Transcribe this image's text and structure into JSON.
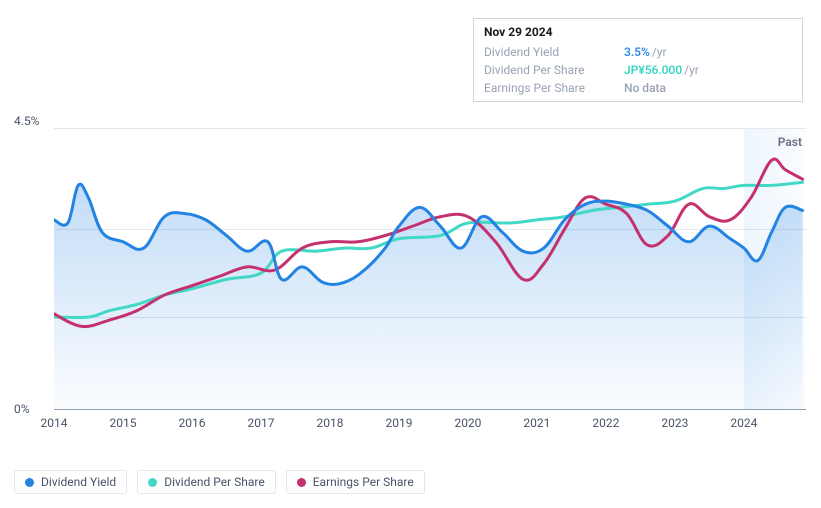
{
  "tooltip": {
    "date": "Nov 29 2024",
    "rows": [
      {
        "label": "Dividend Yield",
        "value": "3.5%",
        "suffix": "/yr",
        "cls": "v-blue"
      },
      {
        "label": "Dividend Per Share",
        "value": "JP¥56.000",
        "suffix": "/yr",
        "cls": "v-teal"
      },
      {
        "label": "Earnings Per Share",
        "value": "No data",
        "suffix": "",
        "cls": "v-gray"
      }
    ]
  },
  "chart": {
    "type": "line",
    "ylim": [
      0,
      4.5
    ],
    "y_ticks": [
      {
        "v": 4.5,
        "label": "4.5%"
      },
      {
        "v": 0,
        "label": "0%"
      }
    ],
    "gridlines_at": [
      2.9,
      1.5
    ],
    "x_start": 2014,
    "x_end": 2024.9,
    "x_ticks": [
      2014,
      2015,
      2016,
      2017,
      2018,
      2019,
      2020,
      2021,
      2022,
      2023,
      2024
    ],
    "past_band": {
      "from": 2024,
      "to": 2024.9,
      "label": "Past"
    },
    "colors": {
      "dividend_yield": "#2383e2",
      "dividend_per_share": "#41d9c6",
      "earnings_per_share": "#c5306e",
      "area_fill_top": "rgba(35,131,226,0.28)",
      "area_fill_bottom": "rgba(35,131,226,0.02)",
      "grid": "#e4e7ec",
      "axis": "#98a2b3"
    },
    "line_width": 3,
    "series": {
      "dividend_yield": [
        [
          2014.0,
          3.05
        ],
        [
          2014.2,
          3.0
        ],
        [
          2014.35,
          3.6
        ],
        [
          2014.5,
          3.4
        ],
        [
          2014.7,
          2.85
        ],
        [
          2015.0,
          2.7
        ],
        [
          2015.3,
          2.6
        ],
        [
          2015.6,
          3.1
        ],
        [
          2015.9,
          3.15
        ],
        [
          2016.2,
          3.05
        ],
        [
          2016.5,
          2.8
        ],
        [
          2016.8,
          2.55
        ],
        [
          2017.1,
          2.7
        ],
        [
          2017.3,
          2.1
        ],
        [
          2017.6,
          2.3
        ],
        [
          2017.9,
          2.05
        ],
        [
          2018.2,
          2.05
        ],
        [
          2018.5,
          2.25
        ],
        [
          2018.8,
          2.6
        ],
        [
          2019.0,
          2.95
        ],
        [
          2019.3,
          3.25
        ],
        [
          2019.6,
          2.95
        ],
        [
          2019.9,
          2.6
        ],
        [
          2020.2,
          3.1
        ],
        [
          2020.5,
          2.85
        ],
        [
          2020.8,
          2.55
        ],
        [
          2021.1,
          2.6
        ],
        [
          2021.4,
          3.05
        ],
        [
          2021.7,
          3.3
        ],
        [
          2022.0,
          3.35
        ],
        [
          2022.3,
          3.3
        ],
        [
          2022.6,
          3.2
        ],
        [
          2022.9,
          2.95
        ],
        [
          2023.2,
          2.7
        ],
        [
          2023.5,
          2.95
        ],
        [
          2023.8,
          2.75
        ],
        [
          2024.0,
          2.6
        ],
        [
          2024.2,
          2.4
        ],
        [
          2024.4,
          2.85
        ],
        [
          2024.6,
          3.25
        ],
        [
          2024.85,
          3.2
        ]
      ],
      "dividend_per_share": [
        [
          2014.0,
          1.5
        ],
        [
          2014.5,
          1.5
        ],
        [
          2014.8,
          1.6
        ],
        [
          2015.2,
          1.7
        ],
        [
          2015.6,
          1.85
        ],
        [
          2016.0,
          1.95
        ],
        [
          2016.5,
          2.1
        ],
        [
          2017.0,
          2.2
        ],
        [
          2017.3,
          2.55
        ],
        [
          2017.8,
          2.55
        ],
        [
          2018.2,
          2.6
        ],
        [
          2018.6,
          2.6
        ],
        [
          2019.0,
          2.75
        ],
        [
          2019.6,
          2.8
        ],
        [
          2020.0,
          3.0
        ],
        [
          2020.6,
          3.0
        ],
        [
          2021.0,
          3.05
        ],
        [
          2021.4,
          3.1
        ],
        [
          2021.8,
          3.2
        ],
        [
          2022.2,
          3.25
        ],
        [
          2022.6,
          3.3
        ],
        [
          2023.0,
          3.35
        ],
        [
          2023.4,
          3.55
        ],
        [
          2023.7,
          3.55
        ],
        [
          2024.0,
          3.6
        ],
        [
          2024.4,
          3.6
        ],
        [
          2024.85,
          3.65
        ]
      ],
      "earnings_per_share": [
        [
          2014.0,
          1.55
        ],
        [
          2014.4,
          1.35
        ],
        [
          2014.8,
          1.45
        ],
        [
          2015.2,
          1.6
        ],
        [
          2015.6,
          1.85
        ],
        [
          2016.0,
          2.0
        ],
        [
          2016.4,
          2.15
        ],
        [
          2016.8,
          2.3
        ],
        [
          2017.2,
          2.25
        ],
        [
          2017.6,
          2.6
        ],
        [
          2018.0,
          2.7
        ],
        [
          2018.4,
          2.7
        ],
        [
          2018.8,
          2.8
        ],
        [
          2019.2,
          2.95
        ],
        [
          2019.6,
          3.1
        ],
        [
          2020.0,
          3.1
        ],
        [
          2020.4,
          2.7
        ],
        [
          2020.8,
          2.1
        ],
        [
          2021.1,
          2.35
        ],
        [
          2021.4,
          2.9
        ],
        [
          2021.7,
          3.4
        ],
        [
          2022.0,
          3.3
        ],
        [
          2022.3,
          3.15
        ],
        [
          2022.6,
          2.65
        ],
        [
          2022.9,
          2.8
        ],
        [
          2023.2,
          3.3
        ],
        [
          2023.5,
          3.1
        ],
        [
          2023.8,
          3.05
        ],
        [
          2024.1,
          3.4
        ],
        [
          2024.4,
          4.0
        ],
        [
          2024.6,
          3.85
        ],
        [
          2024.85,
          3.7
        ]
      ]
    },
    "area_series": "dividend_yield"
  },
  "legend": [
    {
      "label": "Dividend Yield",
      "color": "#2383e2"
    },
    {
      "label": "Dividend Per Share",
      "color": "#41d9c6"
    },
    {
      "label": "Earnings Per Share",
      "color": "#c5306e"
    }
  ]
}
